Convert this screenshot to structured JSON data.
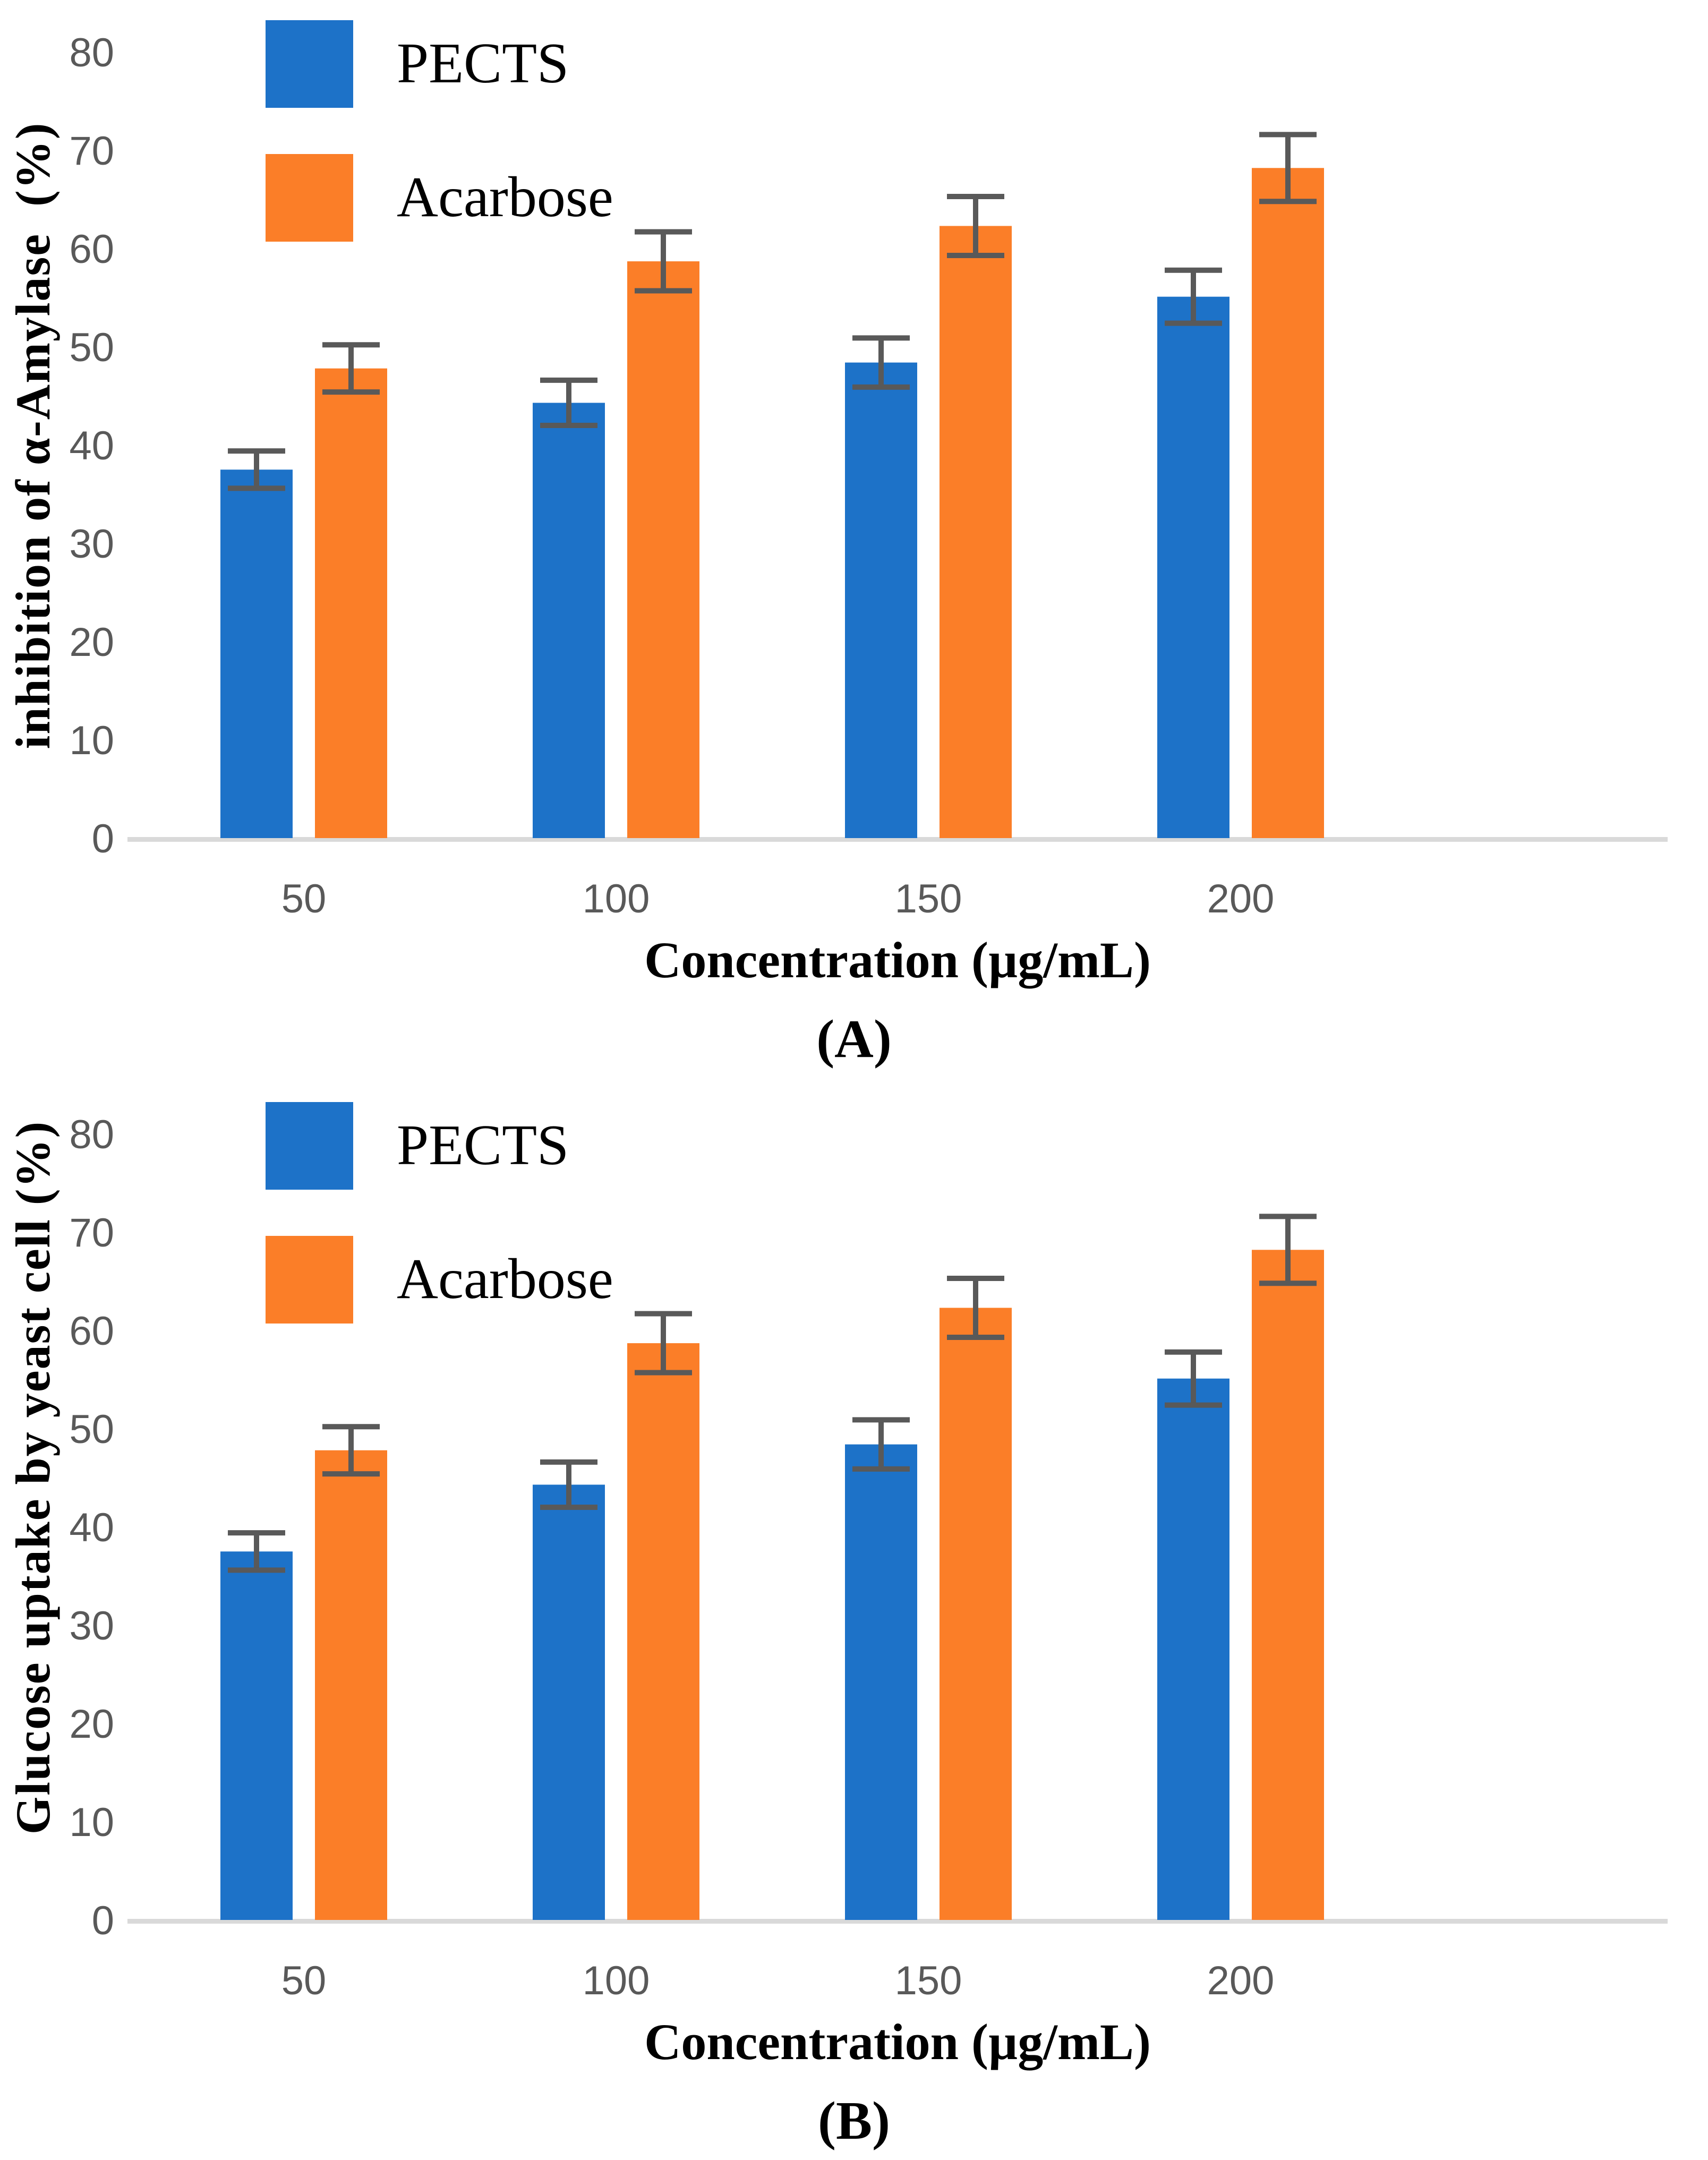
{
  "page": {
    "background": "#ffffff"
  },
  "chart_data": [
    {
      "type": "bar",
      "panel_label": "(A)",
      "title": "",
      "ylabel": "inhibition of α-Amylase  (%)",
      "xlabel": "Concentration (µg/mL)",
      "categories": [
        "50",
        "100",
        "150",
        "200"
      ],
      "yticks": [
        0,
        10,
        20,
        30,
        40,
        50,
        60,
        70,
        80
      ],
      "ylim": [
        0,
        80
      ],
      "grid": false,
      "legend_position": "upper-left-inside",
      "series": [
        {
          "name": "PECTS",
          "color": "#1D72C8",
          "values": [
            37.5,
            44.3,
            48.4,
            55.1
          ],
          "errors": [
            1.9,
            2.3,
            2.5,
            2.7
          ]
        },
        {
          "name": "Acarbose",
          "color": "#FB7E28",
          "values": [
            47.8,
            58.7,
            62.3,
            68.2
          ],
          "errors": [
            2.4,
            3.0,
            3.0,
            3.4
          ]
        }
      ],
      "colors": {
        "axis_line": "#D9D9D9",
        "tick_text": "#595959",
        "error_bar": "#595959"
      }
    },
    {
      "type": "bar",
      "panel_label": "(B)",
      "title": "",
      "ylabel": "Glucose uptake by yeast cell (%)",
      "xlabel": "Concentration (µg/mL)",
      "categories": [
        "50",
        "100",
        "150",
        "200"
      ],
      "yticks": [
        0,
        10,
        20,
        30,
        40,
        50,
        60,
        70,
        80
      ],
      "ylim": [
        0,
        80
      ],
      "grid": false,
      "legend_position": "upper-left-inside",
      "series": [
        {
          "name": "PECTS",
          "color": "#1D72C8",
          "values": [
            37.5,
            44.3,
            48.4,
            55.1
          ],
          "errors": [
            1.9,
            2.3,
            2.5,
            2.7
          ]
        },
        {
          "name": "Acarbose",
          "color": "#FB7E28",
          "values": [
            47.8,
            58.7,
            62.3,
            68.2
          ],
          "errors": [
            2.4,
            3.0,
            3.0,
            3.4
          ]
        }
      ],
      "colors": {
        "axis_line": "#D9D9D9",
        "tick_text": "#595959",
        "error_bar": "#595959"
      }
    }
  ]
}
